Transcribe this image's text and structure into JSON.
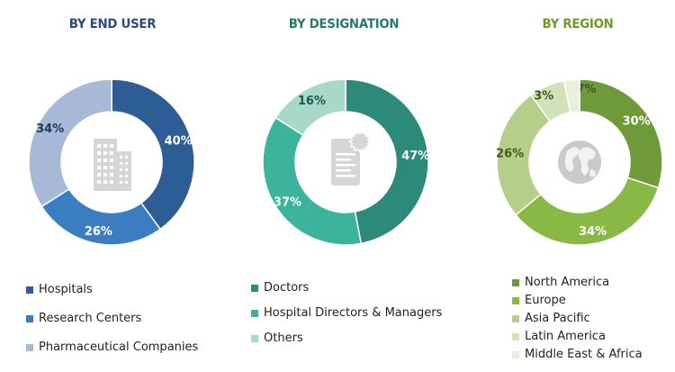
{
  "chart_data": [
    {
      "type": "pie",
      "title": "BY END USER",
      "categories": [
        "Hospitals",
        "Research Centers",
        "Pharmaceutical Companies"
      ],
      "values": [
        40,
        26,
        34
      ],
      "labels": [
        "40%",
        "26%",
        "34%"
      ],
      "colors": [
        "#2c5d94",
        "#3a7dc0",
        "#a7b9d6"
      ],
      "label_colors": [
        "#ffffff",
        "#ffffff",
        "#1f3a60"
      ],
      "title_color": "#2d4a7d",
      "center_icon": "building-icon"
    },
    {
      "type": "pie",
      "title": "BY DESIGNATION",
      "categories": [
        "Doctors",
        "Hospital Directors & Managers",
        "Others"
      ],
      "values": [
        47,
        37,
        16
      ],
      "labels": [
        "47%",
        "37%",
        "16%"
      ],
      "colors": [
        "#2d8a78",
        "#3cb39b",
        "#a8d8c8"
      ],
      "label_colors": [
        "#ffffff",
        "#ffffff",
        "#1d5a4e"
      ],
      "title_color": "#2a7a6a",
      "center_icon": "document-certificate-icon"
    },
    {
      "type": "pie",
      "title": "BY REGION",
      "categories": [
        "North America",
        "Europe",
        "Asia Pacific",
        "Latin America",
        "Middle East & Africa"
      ],
      "values": [
        30,
        34,
        26,
        7,
        3
      ],
      "labels": [
        "30%",
        "34%",
        "26%",
        "7%",
        "3%"
      ],
      "colors": [
        "#6f9a3a",
        "#8ab845",
        "#b5cf8a",
        "#d2e2b8",
        "#e8f0dc"
      ],
      "label_colors": [
        "#ffffff",
        "#ffffff",
        "#3e5a1e",
        "#3e5a1e",
        "#3e5a1e"
      ],
      "title_color": "#6f9a2a",
      "center_icon": "globe-icon"
    }
  ]
}
